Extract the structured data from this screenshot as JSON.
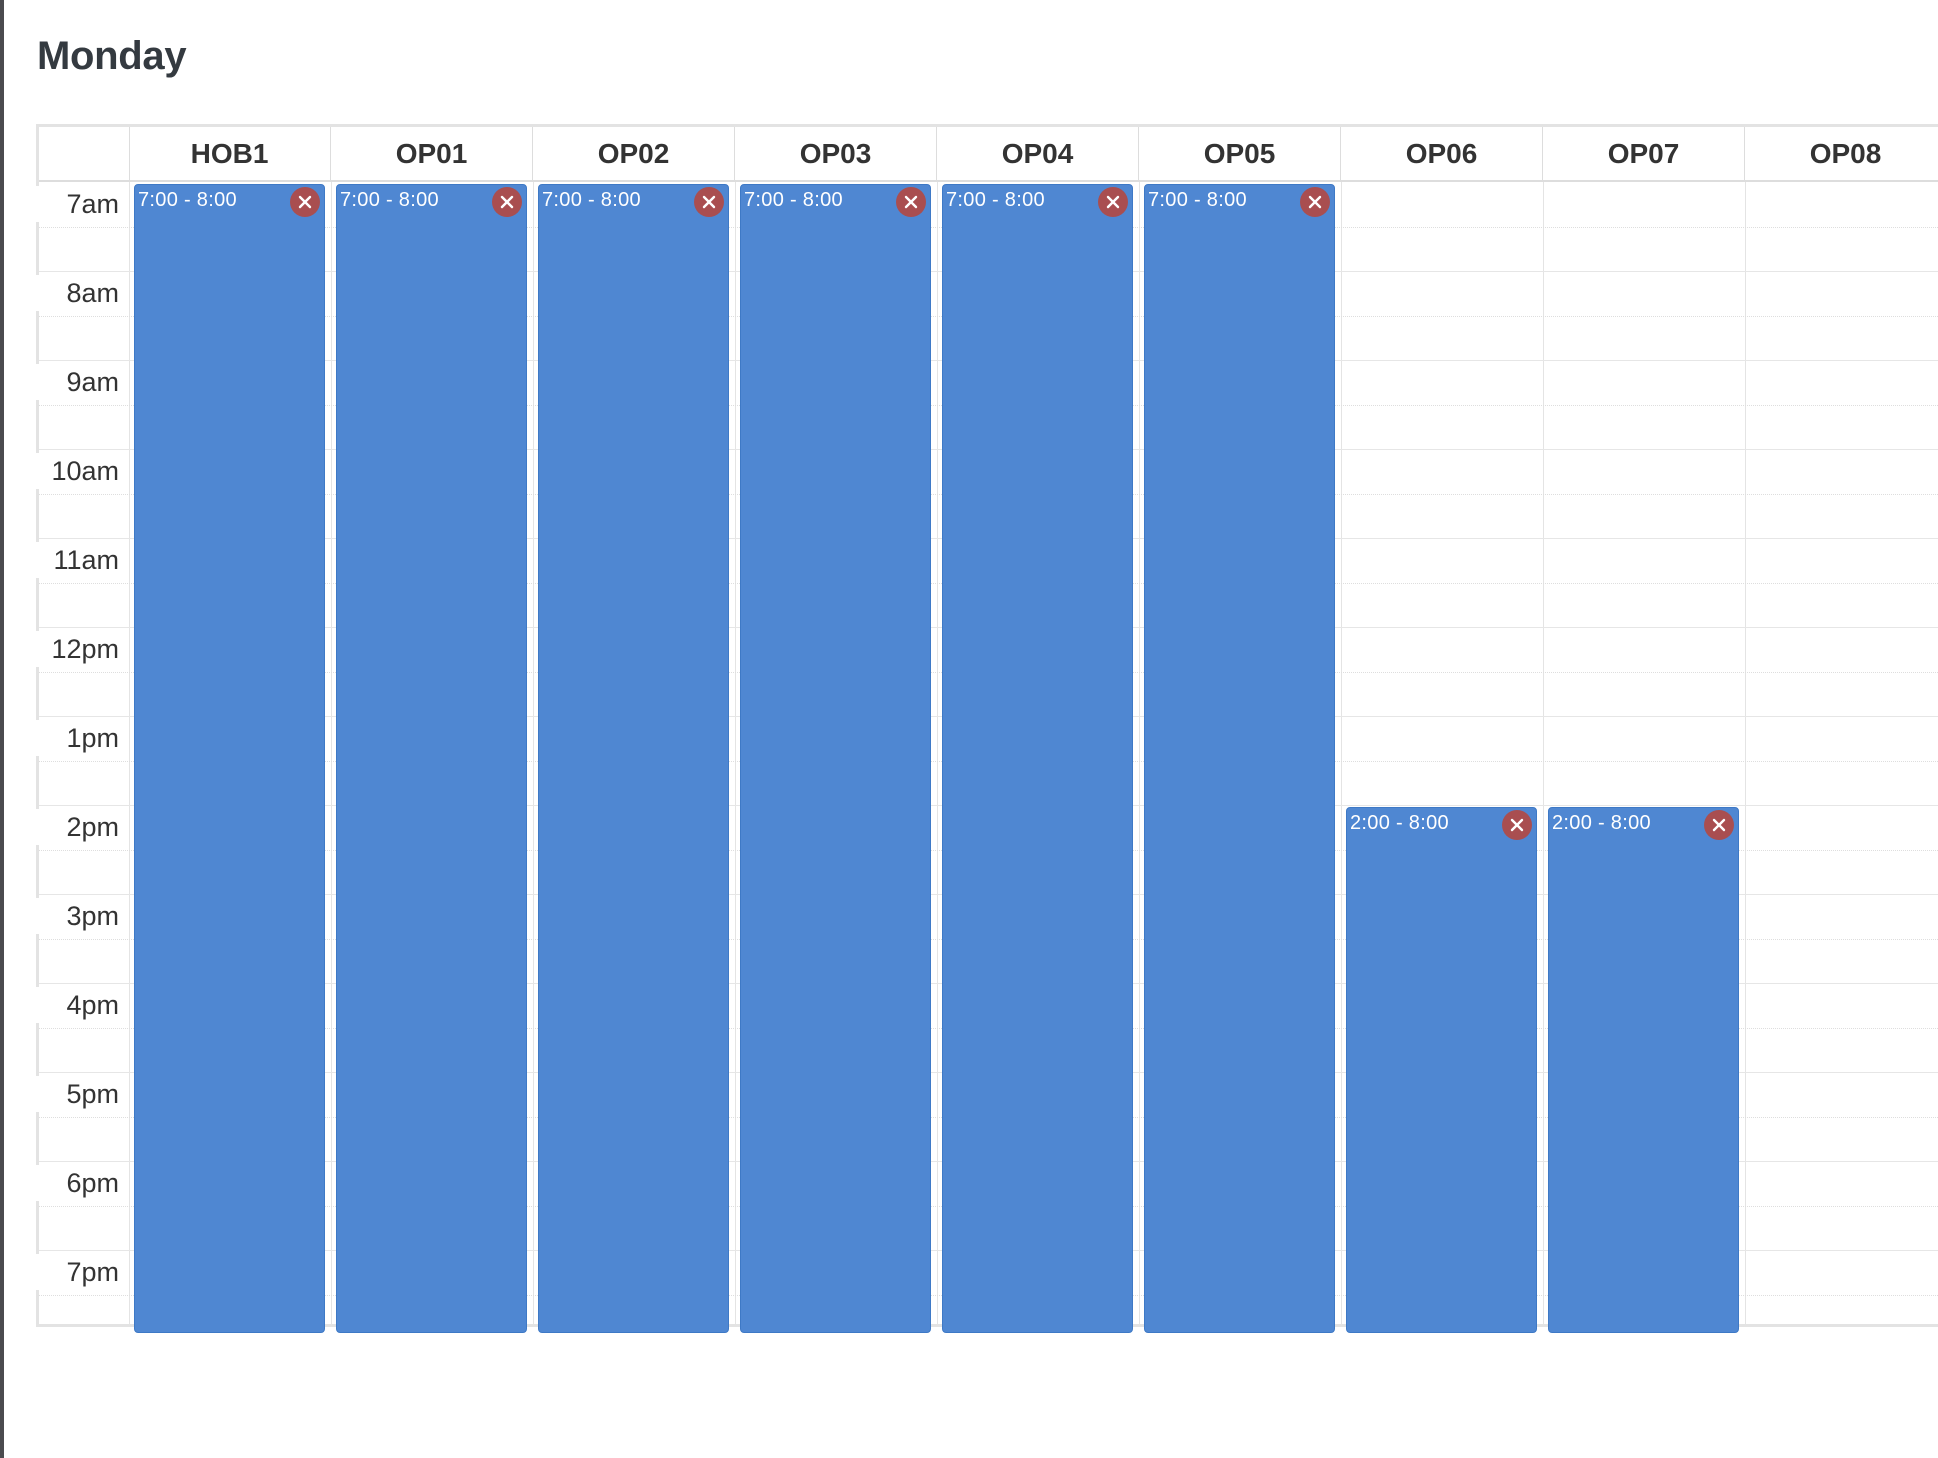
{
  "page": {
    "title": "Monday"
  },
  "calendar": {
    "columns": [
      "HOB1",
      "OP01",
      "OP02",
      "OP03",
      "OP04",
      "OP05",
      "OP06",
      "OP07",
      "OP08"
    ],
    "hours": [
      "7am",
      "8am",
      "9am",
      "10am",
      "11am",
      "12pm",
      "1pm",
      "2pm",
      "3pm",
      "4pm",
      "5pm",
      "6pm",
      "7pm"
    ],
    "day_start_hour": 7,
    "day_end_hour": 20,
    "events": [
      {
        "column": 0,
        "label": "7:00 - 8:00",
        "start_hour": 7,
        "end_hour": 20
      },
      {
        "column": 1,
        "label": "7:00 - 8:00",
        "start_hour": 7,
        "end_hour": 20
      },
      {
        "column": 2,
        "label": "7:00 - 8:00",
        "start_hour": 7,
        "end_hour": 20
      },
      {
        "column": 3,
        "label": "7:00 - 8:00",
        "start_hour": 7,
        "end_hour": 20
      },
      {
        "column": 4,
        "label": "7:00 - 8:00",
        "start_hour": 7,
        "end_hour": 20
      },
      {
        "column": 5,
        "label": "7:00 - 8:00",
        "start_hour": 7,
        "end_hour": 20
      },
      {
        "column": 6,
        "label": "2:00 - 8:00",
        "start_hour": 14,
        "end_hour": 20
      },
      {
        "column": 7,
        "label": "2:00 - 8:00",
        "start_hour": 14,
        "end_hour": 20
      }
    ],
    "colors": {
      "event_fill": "#4f87d2",
      "close_button": "#a94e50",
      "grid": "#e6e6e6"
    },
    "icons": {
      "close": "close-icon"
    }
  }
}
